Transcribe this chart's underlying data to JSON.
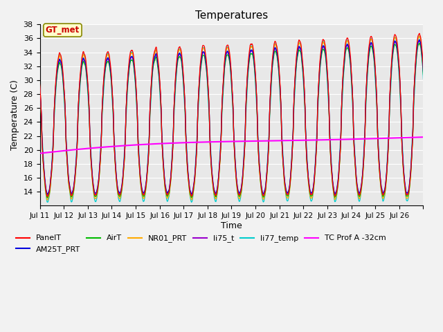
{
  "title": "Temperatures",
  "xlabel": "Time",
  "ylabel": "Temperature (C)",
  "ylim": [
    12,
    38
  ],
  "yticks": [
    14,
    16,
    18,
    20,
    22,
    24,
    26,
    28,
    30,
    32,
    34,
    36,
    38
  ],
  "xlim": [
    10,
    26
  ],
  "xtick_positions": [
    10,
    11,
    12,
    13,
    14,
    15,
    16,
    17,
    18,
    19,
    20,
    21,
    22,
    23,
    24,
    25,
    26
  ],
  "xtick_labels": [
    "Jul 11",
    "Jul 12",
    "Jul 13",
    "Jul 14",
    "Jul 15",
    "Jul 16",
    "Jul 17",
    "Jul 18",
    "Jul 19",
    "Jul 20",
    "Jul 21",
    "Jul 22",
    "Jul 23",
    "Jul 24",
    "Jul 25",
    "Jul 26",
    ""
  ],
  "series_colors": {
    "PanelT": "#FF0000",
    "AM25T_PRT": "#0000DD",
    "AirT": "#00BB00",
    "NR01_PRT": "#FFAA00",
    "li75_t": "#9900CC",
    "li77_temp": "#00CCCC",
    "TC Prof A -32cm": "#FF00FF"
  },
  "annotation_text": "GT_met",
  "annotation_color": "#CC0000",
  "annotation_bg": "#FFFFCC",
  "plot_bg": "#E8E8E8",
  "grid_color": "#FFFFFF",
  "n_points": 1600,
  "x_start": 10.0,
  "x_end": 26.0,
  "figsize": [
    6.4,
    4.8
  ],
  "dpi": 100,
  "legend_ncol": 3,
  "tc_start": 19.5,
  "tc_end": 22.2
}
